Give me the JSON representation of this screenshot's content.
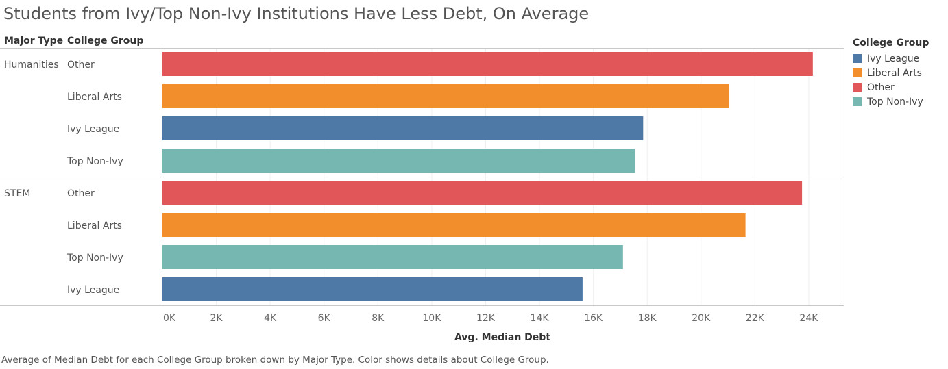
{
  "title": "Students from Ivy/Top Non-Ivy Institutions Have Less Debt, On Average",
  "caption": "Average of Median Debt for each College Group broken down by Major Type.  Color shows details about College Group.",
  "headers": {
    "major_type": "Major Type",
    "college_group": "College Group"
  },
  "legend": {
    "title": "College Group",
    "items": [
      {
        "label": "Ivy League",
        "color": "#4e79a7"
      },
      {
        "label": "Liberal Arts",
        "color": "#f28e2b"
      },
      {
        "label": "Other",
        "color": "#e15759"
      },
      {
        "label": "Top Non-Ivy",
        "color": "#76b7b2"
      }
    ]
  },
  "chart_data": {
    "type": "bar",
    "orientation": "horizontal",
    "title": "Students from Ivy/Top Non-Ivy Institutions Have Less Debt, On Average",
    "xlabel": "Avg. Median Debt",
    "xlim": [
      0,
      25300
    ],
    "xticks": [
      0,
      2000,
      4000,
      6000,
      8000,
      10000,
      12000,
      14000,
      16000,
      18000,
      20000,
      22000,
      24000
    ],
    "xtick_labels": [
      "0K",
      "2K",
      "4K",
      "6K",
      "8K",
      "10K",
      "12K",
      "14K",
      "16K",
      "18K",
      "20K",
      "22K",
      "24K"
    ],
    "groups": [
      {
        "name": "Humanities",
        "bars": [
          {
            "label": "Other",
            "value": 24150,
            "color": "#e15759"
          },
          {
            "label": "Liberal Arts",
            "value": 21050,
            "color": "#f28e2b"
          },
          {
            "label": "Ivy League",
            "value": 17850,
            "color": "#4e79a7"
          },
          {
            "label": "Top Non-Ivy",
            "value": 17550,
            "color": "#76b7b2"
          }
        ]
      },
      {
        "name": "STEM",
        "bars": [
          {
            "label": "Other",
            "value": 23750,
            "color": "#e15759"
          },
          {
            "label": "Liberal Arts",
            "value": 21650,
            "color": "#f28e2b"
          },
          {
            "label": "Top Non-Ivy",
            "value": 17100,
            "color": "#76b7b2"
          },
          {
            "label": "Ivy League",
            "value": 15600,
            "color": "#4e79a7"
          }
        ]
      }
    ],
    "grid": true,
    "legend_position": "right"
  }
}
